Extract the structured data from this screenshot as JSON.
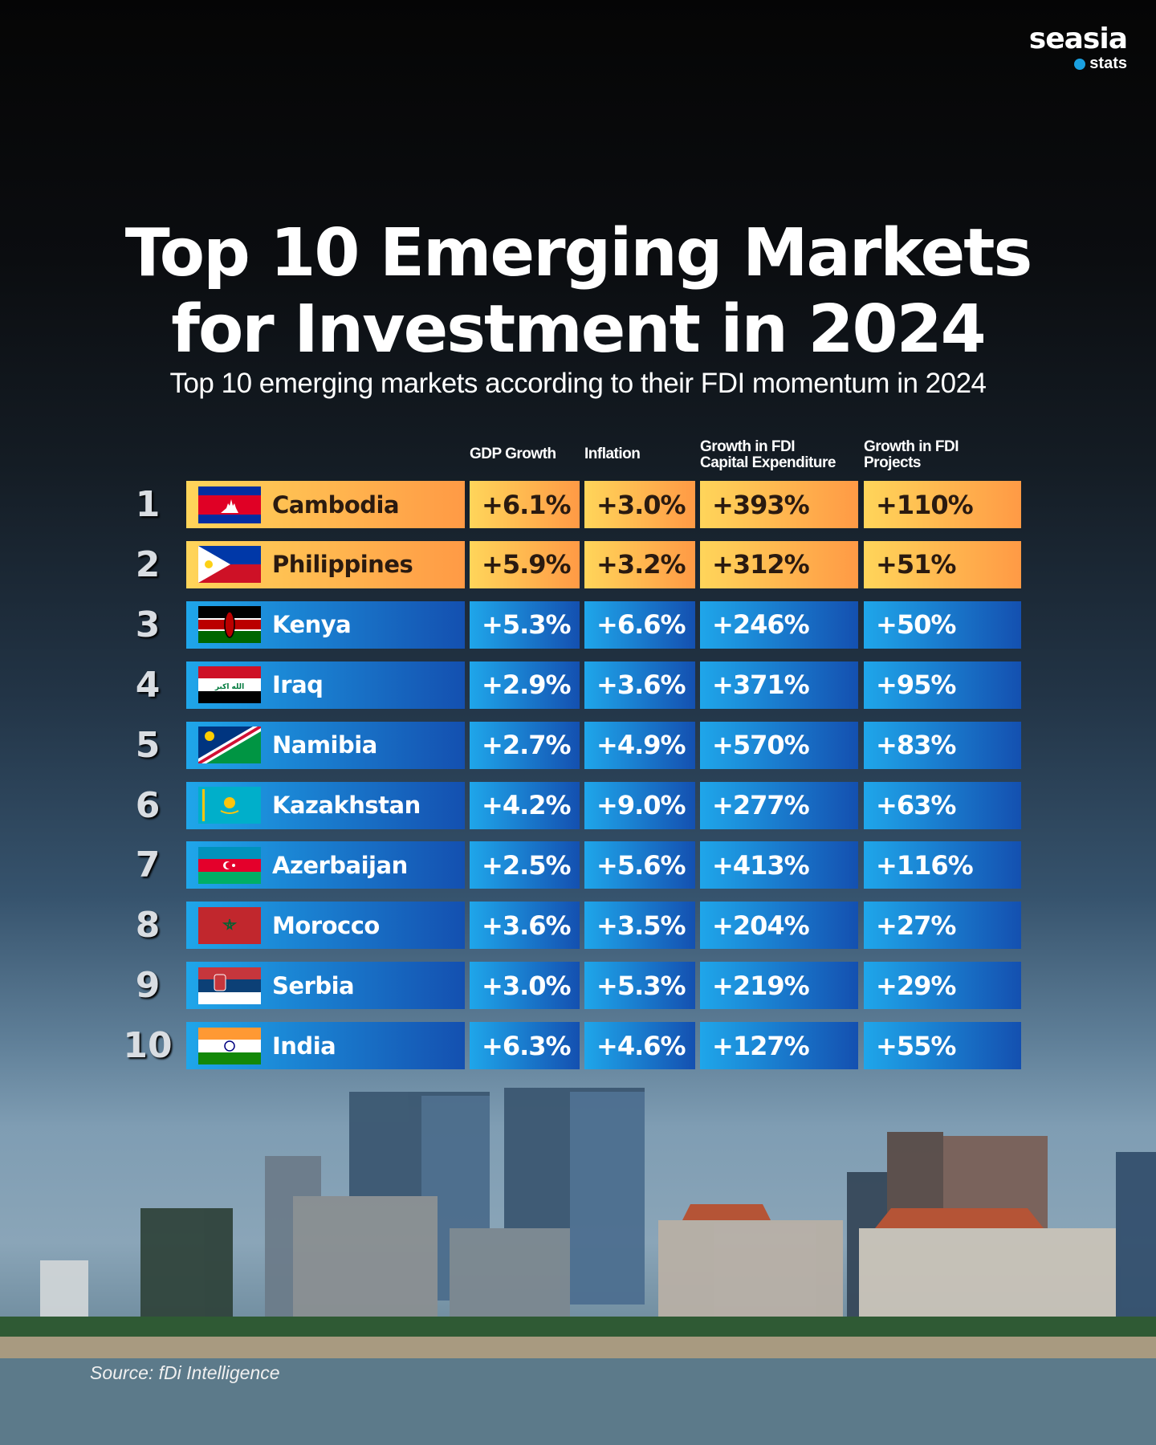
{
  "brand": {
    "name": "seasia",
    "sub": "stats"
  },
  "title_line1": "Top 10 Emerging Markets",
  "title_line2": "for Investment in 2024",
  "subtitle": "Top 10 emerging markets according to their FDI momentum in 2024",
  "chart_data": {
    "type": "table",
    "columns": [
      "GDP Growth",
      "Inflation",
      "Growth in FDI Capital Expenditure",
      "Growth in FDI Projects"
    ],
    "column_lines": [
      [
        "GDP Growth"
      ],
      [
        "Inflation"
      ],
      [
        "Growth in FDI",
        "Capital Expenditure"
      ],
      [
        "Growth in FDI",
        "Projects"
      ]
    ],
    "rows": [
      {
        "rank": "1",
        "country": "Cambodia",
        "flag": "cambodia",
        "highlight": true,
        "values": [
          "+6.1%",
          "+3.0%",
          "+393%",
          "+110%"
        ]
      },
      {
        "rank": "2",
        "country": "Philippines",
        "flag": "philippines",
        "highlight": true,
        "values": [
          "+5.9%",
          "+3.2%",
          "+312%",
          "+51%"
        ]
      },
      {
        "rank": "3",
        "country": "Kenya",
        "flag": "kenya",
        "highlight": false,
        "values": [
          "+5.3%",
          "+6.6%",
          "+246%",
          "+50%"
        ]
      },
      {
        "rank": "4",
        "country": "Iraq",
        "flag": "iraq",
        "highlight": false,
        "values": [
          "+2.9%",
          "+3.6%",
          "+371%",
          "+95%"
        ]
      },
      {
        "rank": "5",
        "country": "Namibia",
        "flag": "namibia",
        "highlight": false,
        "values": [
          "+2.7%",
          "+4.9%",
          "+570%",
          "+83%"
        ]
      },
      {
        "rank": "6",
        "country": "Kazakhstan",
        "flag": "kazakhstan",
        "highlight": false,
        "values": [
          "+4.2%",
          "+9.0%",
          "+277%",
          "+63%"
        ]
      },
      {
        "rank": "7",
        "country": "Azerbaijan",
        "flag": "azerbaijan",
        "highlight": false,
        "values": [
          "+2.5%",
          "+5.6%",
          "+413%",
          "+116%"
        ]
      },
      {
        "rank": "8",
        "country": "Morocco",
        "flag": "morocco",
        "highlight": false,
        "values": [
          "+3.6%",
          "+3.5%",
          "+204%",
          "+27%"
        ]
      },
      {
        "rank": "9",
        "country": "Serbia",
        "flag": "serbia",
        "highlight": false,
        "values": [
          "+3.0%",
          "+5.3%",
          "+219%",
          "+29%"
        ]
      },
      {
        "rank": "10",
        "country": "India",
        "flag": "india",
        "highlight": false,
        "values": [
          "+6.3%",
          "+4.6%",
          "+127%",
          "+55%"
        ]
      }
    ]
  },
  "colors": {
    "highlight_start": "#ffd55a",
    "highlight_end": "#ff9a45",
    "blue_start": "#1fa6ea",
    "blue_end": "#1450b0"
  },
  "source": "Source: fDi Intelligence"
}
